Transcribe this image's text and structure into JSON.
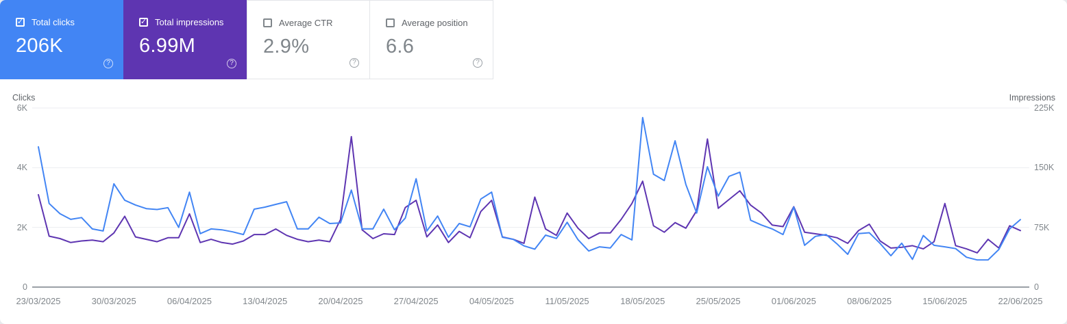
{
  "cards": [
    {
      "label": "Total clicks",
      "value": "206K",
      "selected": true,
      "color": "#4285f4"
    },
    {
      "label": "Total impressions",
      "value": "6.99M",
      "selected": true,
      "color": "#5e35b1"
    },
    {
      "label": "Average CTR",
      "value": "2.9%",
      "selected": false,
      "color": ""
    },
    {
      "label": "Average position",
      "value": "6.6",
      "selected": false,
      "color": ""
    }
  ],
  "icons": {
    "help": "?",
    "check": "✓"
  },
  "chart_data": {
    "type": "line",
    "x_start": "23/03/2025",
    "x_end": "22/06/2025",
    "x_interval": "daily",
    "grid": true,
    "x_tick_labels": [
      "23/03/2025",
      "30/03/2025",
      "06/04/2025",
      "13/04/2025",
      "20/04/2025",
      "27/04/2025",
      "04/05/2025",
      "11/05/2025",
      "18/05/2025",
      "25/05/2025",
      "01/06/2025",
      "08/06/2025",
      "15/06/2025",
      "22/06/2025"
    ],
    "left_axis": {
      "title": "Clicks",
      "max": 6000,
      "ticks": [
        "0",
        "2K",
        "4K",
        "6K"
      ]
    },
    "right_axis": {
      "title": "Impressions",
      "max": 225000,
      "ticks": [
        "0",
        "75K",
        "150K",
        "225K"
      ]
    },
    "series": [
      {
        "name": "Clicks",
        "axis": "left",
        "color": "#4285f4",
        "values": [
          4700,
          2800,
          2460,
          2270,
          2330,
          1950,
          1880,
          3460,
          2910,
          2750,
          2630,
          2600,
          2660,
          2000,
          3180,
          1790,
          1950,
          1920,
          1850,
          1760,
          2610,
          2680,
          2770,
          2860,
          1950,
          1950,
          2340,
          2130,
          2150,
          3250,
          1950,
          1950,
          2610,
          1920,
          2310,
          3630,
          1880,
          2380,
          1670,
          2130,
          2020,
          2950,
          3180,
          1670,
          1600,
          1380,
          1270,
          1740,
          1630,
          2170,
          1590,
          1210,
          1350,
          1310,
          1760,
          1580,
          5680,
          3780,
          3570,
          4900,
          3440,
          2480,
          4030,
          3050,
          3710,
          3850,
          2240,
          2080,
          1950,
          1760,
          2680,
          1400,
          1700,
          1760,
          1450,
          1100,
          1790,
          1820,
          1460,
          1050,
          1470,
          930,
          1730,
          1400,
          1350,
          1290,
          1000,
          910,
          910,
          1260,
          1950,
          2260
        ]
      },
      {
        "name": "Impressions",
        "axis": "right",
        "color": "#5e35b1",
        "values": [
          116000,
          64000,
          61000,
          56000,
          58000,
          59000,
          57000,
          68000,
          89000,
          63000,
          60000,
          57000,
          62000,
          62000,
          92000,
          56000,
          60000,
          56000,
          54000,
          58000,
          66000,
          66000,
          73000,
          65000,
          60000,
          57000,
          59000,
          57000,
          85000,
          189000,
          72000,
          61000,
          67000,
          66000,
          100000,
          109000,
          63000,
          78000,
          56000,
          70000,
          62000,
          95000,
          109000,
          63000,
          60000,
          55000,
          113000,
          73000,
          65000,
          93000,
          74000,
          61000,
          68000,
          68000,
          85000,
          105000,
          133000,
          77000,
          69000,
          81000,
          74000,
          96000,
          186000,
          99000,
          110000,
          121000,
          103000,
          93000,
          78000,
          76000,
          101000,
          69000,
          67000,
          65000,
          62000,
          55000,
          71000,
          79000,
          58000,
          49000,
          50000,
          52000,
          48000,
          57000,
          105000,
          52000,
          48000,
          43000,
          60000,
          49000,
          77000,
          71000
        ]
      }
    ]
  }
}
